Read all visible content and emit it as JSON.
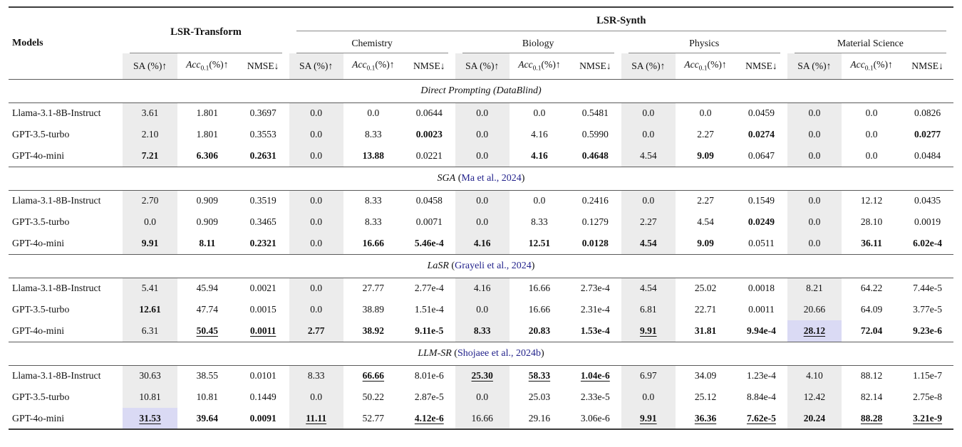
{
  "colors": {
    "link_blue": "#23238c",
    "col_shade": "#ececec",
    "best_highlight": "#dadaf4"
  },
  "header": {
    "models": "Models",
    "group_transform": "LSR-Transform",
    "group_synth": "LSR-Synth",
    "domains": [
      "Chemistry",
      "Biology",
      "Physics",
      "Material Science"
    ],
    "metrics": {
      "sa": "SA (%)↑",
      "acc_italic": "Acc",
      "acc_sub": "0.1",
      "acc_rest": "(%)↑",
      "nmse": "NMSE↓"
    }
  },
  "sections": [
    {
      "title": "Direct Prompting (DataBlind)",
      "citation": null,
      "rows": [
        {
          "model": "Llama-3.1-8B-Instruct",
          "cells": [
            [
              "3.61",
              ""
            ],
            [
              "1.801",
              ""
            ],
            [
              "0.3697",
              ""
            ],
            [
              "0.0",
              ""
            ],
            [
              "0.0",
              ""
            ],
            [
              "0.0644",
              ""
            ],
            [
              "0.0",
              ""
            ],
            [
              "0.0",
              ""
            ],
            [
              "0.5481",
              ""
            ],
            [
              "0.0",
              ""
            ],
            [
              "0.0",
              ""
            ],
            [
              "0.0459",
              ""
            ],
            [
              "0.0",
              ""
            ],
            [
              "0.0",
              ""
            ],
            [
              "0.0826",
              ""
            ]
          ]
        },
        {
          "model": "GPT-3.5-turbo",
          "cells": [
            [
              "2.10",
              ""
            ],
            [
              "1.801",
              ""
            ],
            [
              "0.3553",
              ""
            ],
            [
              "0.0",
              ""
            ],
            [
              "8.33",
              ""
            ],
            [
              "0.0023",
              "b"
            ],
            [
              "0.0",
              ""
            ],
            [
              "4.16",
              ""
            ],
            [
              "0.5990",
              ""
            ],
            [
              "0.0",
              ""
            ],
            [
              "2.27",
              ""
            ],
            [
              "0.0274",
              "b"
            ],
            [
              "0.0",
              ""
            ],
            [
              "0.0",
              ""
            ],
            [
              "0.0277",
              "b"
            ]
          ]
        },
        {
          "model": "GPT-4o-mini",
          "cells": [
            [
              "7.21",
              "b"
            ],
            [
              "6.306",
              "b"
            ],
            [
              "0.2631",
              "b"
            ],
            [
              "0.0",
              ""
            ],
            [
              "13.88",
              "b"
            ],
            [
              "0.0221",
              ""
            ],
            [
              "0.0",
              ""
            ],
            [
              "4.16",
              "b"
            ],
            [
              "0.4648",
              "b"
            ],
            [
              "4.54",
              ""
            ],
            [
              "9.09",
              "b"
            ],
            [
              "0.0647",
              ""
            ],
            [
              "0.0",
              ""
            ],
            [
              "0.0",
              ""
            ],
            [
              "0.0484",
              ""
            ]
          ]
        }
      ]
    },
    {
      "title": "SGA",
      "citation": "Ma et al., 2024",
      "rows": [
        {
          "model": "Llama-3.1-8B-Instruct",
          "cells": [
            [
              "2.70",
              ""
            ],
            [
              "0.909",
              ""
            ],
            [
              "0.3519",
              ""
            ],
            [
              "0.0",
              ""
            ],
            [
              "8.33",
              ""
            ],
            [
              "0.0458",
              ""
            ],
            [
              "0.0",
              ""
            ],
            [
              "0.0",
              ""
            ],
            [
              "0.2416",
              ""
            ],
            [
              "0.0",
              ""
            ],
            [
              "2.27",
              ""
            ],
            [
              "0.1549",
              ""
            ],
            [
              "0.0",
              ""
            ],
            [
              "12.12",
              ""
            ],
            [
              "0.0435",
              ""
            ]
          ]
        },
        {
          "model": "GPT-3.5-turbo",
          "cells": [
            [
              "0.0",
              ""
            ],
            [
              "0.909",
              ""
            ],
            [
              "0.3465",
              ""
            ],
            [
              "0.0",
              ""
            ],
            [
              "8.33",
              ""
            ],
            [
              "0.0071",
              ""
            ],
            [
              "0.0",
              ""
            ],
            [
              "8.33",
              ""
            ],
            [
              "0.1279",
              ""
            ],
            [
              "2.27",
              ""
            ],
            [
              "4.54",
              ""
            ],
            [
              "0.0249",
              "b"
            ],
            [
              "0.0",
              ""
            ],
            [
              "28.10",
              ""
            ],
            [
              "0.0019",
              ""
            ]
          ]
        },
        {
          "model": "GPT-4o-mini",
          "cells": [
            [
              "9.91",
              "b"
            ],
            [
              "8.11",
              "b"
            ],
            [
              "0.2321",
              "b"
            ],
            [
              "0.0",
              ""
            ],
            [
              "16.66",
              "b"
            ],
            [
              "5.46e-4",
              "b"
            ],
            [
              "4.16",
              "b"
            ],
            [
              "12.51",
              "b"
            ],
            [
              "0.0128",
              "b"
            ],
            [
              "4.54",
              "b"
            ],
            [
              "9.09",
              "b"
            ],
            [
              "0.0511",
              ""
            ],
            [
              "0.0",
              ""
            ],
            [
              "36.11",
              "b"
            ],
            [
              "6.02e-4",
              "b"
            ]
          ]
        }
      ]
    },
    {
      "title": "LaSR",
      "citation": "Grayeli et al., 2024",
      "rows": [
        {
          "model": "Llama-3.1-8B-Instruct",
          "cells": [
            [
              "5.41",
              ""
            ],
            [
              "45.94",
              ""
            ],
            [
              "0.0021",
              ""
            ],
            [
              "0.0",
              ""
            ],
            [
              "27.77",
              ""
            ],
            [
              "2.77e-4",
              ""
            ],
            [
              "4.16",
              ""
            ],
            [
              "16.66",
              ""
            ],
            [
              "2.73e-4",
              ""
            ],
            [
              "4.54",
              ""
            ],
            [
              "25.02",
              ""
            ],
            [
              "0.0018",
              ""
            ],
            [
              "8.21",
              ""
            ],
            [
              "64.22",
              ""
            ],
            [
              "7.44e-5",
              ""
            ]
          ]
        },
        {
          "model": "GPT-3.5-turbo",
          "cells": [
            [
              "12.61",
              "b"
            ],
            [
              "47.74",
              ""
            ],
            [
              "0.0015",
              ""
            ],
            [
              "0.0",
              ""
            ],
            [
              "38.89",
              ""
            ],
            [
              "1.51e-4",
              ""
            ],
            [
              "0.0",
              ""
            ],
            [
              "16.66",
              ""
            ],
            [
              "2.31e-4",
              ""
            ],
            [
              "6.81",
              ""
            ],
            [
              "22.71",
              ""
            ],
            [
              "0.0011",
              ""
            ],
            [
              "20.66",
              ""
            ],
            [
              "64.09",
              ""
            ],
            [
              "3.77e-5",
              ""
            ]
          ]
        },
        {
          "model": "GPT-4o-mini",
          "cells": [
            [
              "6.31",
              ""
            ],
            [
              "50.45",
              "bu"
            ],
            [
              "0.0011",
              "bu"
            ],
            [
              "2.77",
              "b"
            ],
            [
              "38.92",
              "b"
            ],
            [
              "9.11e-5",
              "b"
            ],
            [
              "8.33",
              "b"
            ],
            [
              "20.83",
              "b"
            ],
            [
              "1.53e-4",
              "b"
            ],
            [
              "9.91",
              "bu"
            ],
            [
              "31.81",
              "b"
            ],
            [
              "9.94e-4",
              "b"
            ],
            [
              "28.12",
              "buh"
            ],
            [
              "72.04",
              "b"
            ],
            [
              "9.23e-6",
              "b"
            ]
          ]
        }
      ]
    },
    {
      "title": "LLM-SR",
      "citation": "Shojaee et al., 2024b",
      "rows": [
        {
          "model": "Llama-3.1-8B-Instruct",
          "cells": [
            [
              "30.63",
              ""
            ],
            [
              "38.55",
              ""
            ],
            [
              "0.0101",
              ""
            ],
            [
              "8.33",
              ""
            ],
            [
              "66.66",
              "bu"
            ],
            [
              "8.01e-6",
              ""
            ],
            [
              "25.30",
              "bu"
            ],
            [
              "58.33",
              "bu"
            ],
            [
              "1.04e-6",
              "bu"
            ],
            [
              "6.97",
              ""
            ],
            [
              "34.09",
              ""
            ],
            [
              "1.23e-4",
              ""
            ],
            [
              "4.10",
              ""
            ],
            [
              "88.12",
              ""
            ],
            [
              "1.15e-7",
              ""
            ]
          ]
        },
        {
          "model": "GPT-3.5-turbo",
          "cells": [
            [
              "10.81",
              ""
            ],
            [
              "10.81",
              ""
            ],
            [
              "0.1449",
              ""
            ],
            [
              "0.0",
              ""
            ],
            [
              "50.22",
              ""
            ],
            [
              "2.87e-5",
              ""
            ],
            [
              "0.0",
              ""
            ],
            [
              "25.03",
              ""
            ],
            [
              "2.33e-5",
              ""
            ],
            [
              "0.0",
              ""
            ],
            [
              "25.12",
              ""
            ],
            [
              "8.84e-4",
              ""
            ],
            [
              "12.42",
              ""
            ],
            [
              "82.14",
              ""
            ],
            [
              "2.75e-8",
              ""
            ]
          ]
        },
        {
          "model": "GPT-4o-mini",
          "cells": [
            [
              "31.53",
              "buh"
            ],
            [
              "39.64",
              "b"
            ],
            [
              "0.0091",
              "b"
            ],
            [
              "11.11",
              "bu"
            ],
            [
              "52.77",
              ""
            ],
            [
              "4.12e-6",
              "bu"
            ],
            [
              "16.66",
              ""
            ],
            [
              "29.16",
              ""
            ],
            [
              "3.06e-6",
              ""
            ],
            [
              "9.91",
              "bu"
            ],
            [
              "36.36",
              "bu"
            ],
            [
              "7.62e-5",
              "bu"
            ],
            [
              "20.24",
              "b"
            ],
            [
              "88.28",
              "bu"
            ],
            [
              "3.21e-9",
              "bu"
            ]
          ]
        }
      ]
    }
  ]
}
